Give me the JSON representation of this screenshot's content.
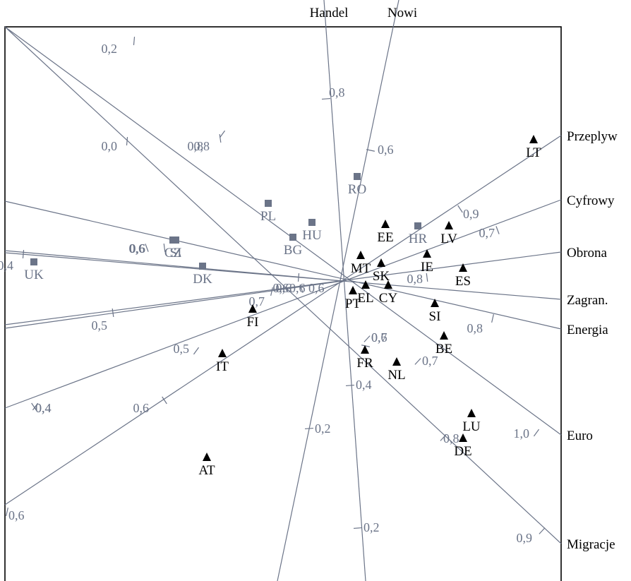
{
  "chart_data": {
    "type": "scatter",
    "colors": {
      "axis": "#6b7488",
      "triangle": "#000000",
      "square": "#6b7488",
      "frame": "#000000"
    },
    "axes": [
      {
        "name": "Handel",
        "ticks": [
          {
            "label": "0,8"
          },
          {
            "label": "0,4"
          },
          {
            "label": "0,2"
          },
          {
            "label": "0,2"
          }
        ]
      },
      {
        "name": "Nowi",
        "ticks": [
          {
            "label": "0,6"
          },
          {
            "label": "0,7"
          },
          {
            "label": "0,2"
          }
        ]
      },
      {
        "name": "Przeplyw",
        "ticks": [
          {
            "label": "0,9"
          },
          {
            "label": "0,6"
          },
          {
            "label": "0,4"
          }
        ]
      },
      {
        "name": "Cyfrowy",
        "ticks": [
          {
            "label": "0,7"
          },
          {
            "label": "0,6"
          },
          {
            "label": "0,6"
          }
        ]
      },
      {
        "name": "Obrona",
        "ticks": [
          {
            "label": "0,8"
          },
          {
            "label": "0,6"
          },
          {
            "label": "0,4"
          }
        ]
      },
      {
        "name": "Zagran.",
        "ticks": [
          {
            "label": "0,6"
          }
        ]
      },
      {
        "name": "Energia",
        "ticks": [
          {
            "label": "0,8"
          },
          {
            "label": "0,7"
          },
          {
            "label": "0,6"
          }
        ]
      },
      {
        "name": "Euro",
        "ticks": [
          {
            "label": "1,0"
          },
          {
            "label": "0,8"
          },
          {
            "label": "0,5"
          },
          {
            "label": "0,4"
          }
        ]
      },
      {
        "name": "Migracje",
        "ticks": [
          {
            "label": "0,9"
          },
          {
            "label": "0,8"
          },
          {
            "label": "0,7"
          },
          {
            "label": "0,6"
          }
        ]
      },
      {
        "name": "",
        "ticks": [
          {
            "label": "0,4"
          },
          {
            "label": "0,2"
          },
          {
            "label": "0,0"
          }
        ]
      },
      {
        "name": "",
        "ticks": [
          {
            "label": "0,5"
          },
          {
            "label": "0,8"
          }
        ]
      }
    ],
    "points": [
      {
        "label": "LT",
        "marker": "triangle"
      },
      {
        "label": "EE",
        "marker": "triangle"
      },
      {
        "label": "LV",
        "marker": "triangle"
      },
      {
        "label": "IE",
        "marker": "triangle"
      },
      {
        "label": "ES",
        "marker": "triangle"
      },
      {
        "label": "MT",
        "marker": "triangle"
      },
      {
        "label": "SK",
        "marker": "triangle"
      },
      {
        "label": "EL",
        "marker": "triangle"
      },
      {
        "label": "CY",
        "marker": "triangle"
      },
      {
        "label": "PT",
        "marker": "triangle"
      },
      {
        "label": "SI",
        "marker": "triangle"
      },
      {
        "label": "BE",
        "marker": "triangle"
      },
      {
        "label": "FR",
        "marker": "triangle"
      },
      {
        "label": "NL",
        "marker": "triangle"
      },
      {
        "label": "FI",
        "marker": "triangle"
      },
      {
        "label": "IT",
        "marker": "triangle"
      },
      {
        "label": "LU",
        "marker": "triangle"
      },
      {
        "label": "DE",
        "marker": "triangle"
      },
      {
        "label": "AT",
        "marker": "triangle"
      },
      {
        "label": "RO",
        "marker": "square"
      },
      {
        "label": "PL",
        "marker": "square"
      },
      {
        "label": "HU",
        "marker": "square"
      },
      {
        "label": "BG",
        "marker": "square"
      },
      {
        "label": "HR",
        "marker": "square"
      },
      {
        "label": "CZ",
        "marker": "square"
      },
      {
        "label": "SI",
        "marker": "square"
      },
      {
        "label": "UK",
        "marker": "square"
      },
      {
        "label": "DK",
        "marker": "square"
      }
    ]
  }
}
